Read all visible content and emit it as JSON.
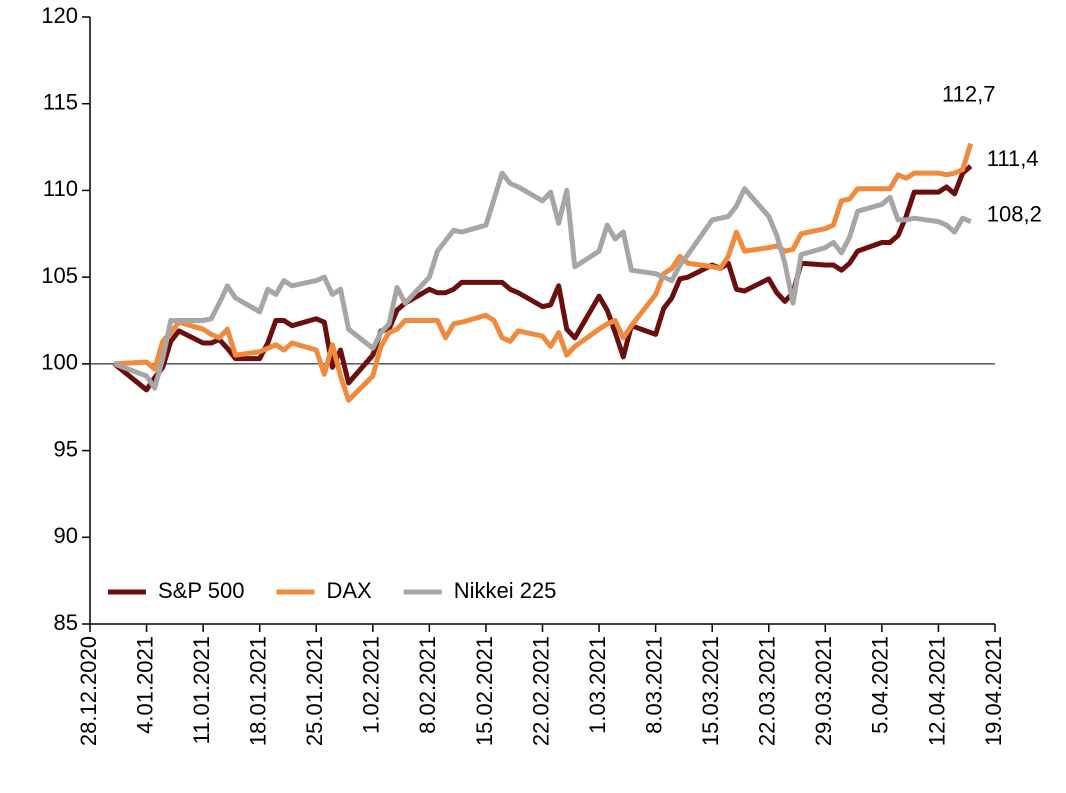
{
  "chart_data": {
    "type": "line",
    "x": [
      "2020-12-31",
      "2021-01-04",
      "2021-01-05",
      "2021-01-06",
      "2021-01-07",
      "2021-01-08",
      "2021-01-11",
      "2021-01-12",
      "2021-01-13",
      "2021-01-14",
      "2021-01-15",
      "2021-01-18",
      "2021-01-19",
      "2021-01-20",
      "2021-01-21",
      "2021-01-22",
      "2021-01-25",
      "2021-01-26",
      "2021-01-27",
      "2021-01-28",
      "2021-01-29",
      "2021-02-01",
      "2021-02-02",
      "2021-02-03",
      "2021-02-04",
      "2021-02-05",
      "2021-02-08",
      "2021-02-09",
      "2021-02-10",
      "2021-02-11",
      "2021-02-12",
      "2021-02-15",
      "2021-02-16",
      "2021-02-17",
      "2021-02-18",
      "2021-02-19",
      "2021-02-22",
      "2021-02-23",
      "2021-02-24",
      "2021-02-25",
      "2021-02-26",
      "2021-03-01",
      "2021-03-02",
      "2021-03-03",
      "2021-03-04",
      "2021-03-05",
      "2021-03-08",
      "2021-03-09",
      "2021-03-10",
      "2021-03-11",
      "2021-03-12",
      "2021-03-15",
      "2021-03-16",
      "2021-03-17",
      "2021-03-18",
      "2021-03-19",
      "2021-03-22",
      "2021-03-23",
      "2021-03-24",
      "2021-03-25",
      "2021-03-26",
      "2021-03-29",
      "2021-03-30",
      "2021-03-31",
      "2021-04-01",
      "2021-04-02",
      "2021-04-05",
      "2021-04-06",
      "2021-04-07",
      "2021-04-08",
      "2021-04-09",
      "2021-04-12",
      "2021-04-13",
      "2021-04-14",
      "2021-04-15",
      "2021-04-16"
    ],
    "series": [
      {
        "name": "S&P 500",
        "color": "#6b0e0e",
        "values": [
          100,
          98.5,
          99.2,
          99.8,
          101.3,
          101.9,
          101.2,
          101.2,
          101.4,
          100.9,
          100.3,
          100.3,
          101.2,
          102.5,
          102.5,
          102.2,
          102.6,
          102.4,
          99.8,
          100.8,
          98.9,
          100.5,
          101.9,
          102.0,
          103.1,
          103.5,
          104.3,
          104.1,
          104.1,
          104.3,
          104.7,
          104.7,
          104.7,
          104.7,
          104.3,
          104.1,
          103.3,
          103.4,
          104.5,
          102.0,
          101.5,
          103.9,
          103.1,
          101.8,
          100.4,
          102.2,
          101.7,
          103.2,
          103.8,
          104.9,
          105.0,
          105.7,
          105.5,
          105.8,
          104.3,
          104.2,
          104.9,
          104.1,
          103.6,
          104.1,
          105.8,
          105.7,
          105.7,
          105.4,
          105.8,
          106.5,
          107.0,
          107.0,
          107.4,
          108.5,
          109.9,
          109.9,
          110.2,
          109.8,
          111.0,
          111.4
        ],
        "value_labels": [
          null,
          null,
          null,
          null,
          null,
          null,
          null,
          null,
          null,
          null,
          null,
          null,
          null,
          null,
          null,
          null,
          null,
          null,
          null,
          null,
          null,
          null,
          null,
          null,
          null,
          null,
          null,
          null,
          null,
          null,
          null,
          null,
          null,
          null,
          null,
          null,
          null,
          null,
          null,
          null,
          null,
          null,
          null,
          null,
          null,
          null,
          null,
          null,
          null,
          null,
          null,
          null,
          null,
          null,
          null,
          null,
          null,
          null,
          null,
          null,
          null,
          null,
          null,
          null,
          null,
          null,
          null,
          null,
          null,
          null,
          null,
          null,
          null,
          null,
          null,
          "111,4"
        ]
      },
      {
        "name": "DAX",
        "color": "#f08a3c",
        "values": [
          100,
          100.1,
          99.7,
          101.3,
          101.8,
          102.4,
          102.0,
          101.7,
          101.5,
          102.0,
          100.5,
          100.7,
          100.9,
          101.1,
          100.8,
          101.2,
          100.8,
          99.4,
          101.1,
          99.3,
          97.9,
          99.3,
          101.0,
          101.8,
          102.0,
          102.5,
          102.5,
          102.5,
          101.5,
          102.3,
          102.4,
          102.8,
          102.5,
          101.5,
          101.3,
          101.9,
          101.6,
          101.0,
          101.8,
          100.5,
          101.0,
          102.0,
          102.3,
          102.5,
          101.5,
          102.2,
          104.0,
          105.2,
          105.5,
          106.2,
          105.8,
          105.6,
          105.5,
          106.2,
          107.6,
          106.5,
          106.7,
          106.8,
          106.5,
          106.6,
          107.5,
          107.8,
          108.0,
          109.4,
          109.5,
          110.1,
          110.1,
          110.1,
          110.9,
          110.7,
          111.0,
          111.0,
          110.9,
          111.0,
          111.2,
          112.7
        ],
        "value_labels": [
          null,
          null,
          null,
          null,
          null,
          null,
          null,
          null,
          null,
          null,
          null,
          null,
          null,
          null,
          null,
          null,
          null,
          null,
          null,
          null,
          null,
          null,
          null,
          null,
          null,
          null,
          null,
          null,
          null,
          null,
          null,
          null,
          null,
          null,
          null,
          null,
          null,
          null,
          null,
          null,
          null,
          null,
          null,
          null,
          null,
          null,
          null,
          null,
          null,
          null,
          null,
          null,
          null,
          null,
          null,
          null,
          null,
          null,
          null,
          null,
          null,
          null,
          null,
          null,
          null,
          null,
          null,
          null,
          null,
          null,
          null,
          null,
          null,
          null,
          null,
          "112,7"
        ]
      },
      {
        "name": "Nikkei 225",
        "color": "#a6a6a6",
        "values": [
          100,
          99.3,
          98.6,
          100.3,
          102.5,
          102.5,
          102.5,
          102.6,
          103.5,
          104.5,
          103.8,
          103.0,
          104.3,
          104.0,
          104.8,
          104.5,
          104.8,
          105.0,
          104.0,
          104.3,
          102.0,
          100.9,
          101.8,
          102.3,
          104.4,
          103.5,
          105.0,
          106.5,
          107.1,
          107.7,
          107.6,
          108.0,
          109.5,
          111.0,
          110.4,
          110.2,
          109.4,
          109.9,
          108.1,
          110.0,
          105.6,
          106.5,
          108.0,
          107.2,
          107.6,
          105.4,
          105.2,
          105.0,
          104.8,
          105.7,
          106.3,
          108.3,
          108.4,
          108.5,
          109.1,
          110.1,
          108.5,
          107.4,
          105.8,
          103.5,
          106.3,
          106.7,
          107.0,
          106.4,
          107.3,
          108.8,
          109.2,
          109.6,
          108.3,
          108.3,
          108.4,
          108.2,
          108.0,
          107.6,
          108.4,
          108.2
        ],
        "value_labels": [
          null,
          null,
          null,
          null,
          null,
          null,
          null,
          null,
          null,
          null,
          null,
          null,
          null,
          null,
          null,
          null,
          null,
          null,
          null,
          null,
          null,
          null,
          null,
          null,
          null,
          null,
          null,
          null,
          null,
          null,
          null,
          null,
          null,
          null,
          null,
          null,
          null,
          null,
          null,
          null,
          null,
          null,
          null,
          null,
          null,
          null,
          null,
          null,
          null,
          null,
          null,
          null,
          null,
          null,
          null,
          null,
          null,
          null,
          null,
          null,
          null,
          null,
          null,
          null,
          null,
          null,
          null,
          null,
          null,
          null,
          null,
          null,
          null,
          null,
          null,
          "108,2"
        ]
      }
    ],
    "xlim": [
      "2020-12-28",
      "2021-04-19"
    ],
    "xticks": [
      {
        "value": "2020-12-28",
        "label": "28.12.2020"
      },
      {
        "value": "2021-01-04",
        "label": "4.01.2021"
      },
      {
        "value": "2021-01-11",
        "label": "11.01.2021"
      },
      {
        "value": "2021-01-18",
        "label": "18.01.2021"
      },
      {
        "value": "2021-01-25",
        "label": "25.01.2021"
      },
      {
        "value": "2021-02-01",
        "label": "1.02.2021"
      },
      {
        "value": "2021-02-08",
        "label": "8.02.2021"
      },
      {
        "value": "2021-02-15",
        "label": "15.02.2021"
      },
      {
        "value": "2021-02-22",
        "label": "22.02.2021"
      },
      {
        "value": "2021-03-01",
        "label": "1.03.2021"
      },
      {
        "value": "2021-03-08",
        "label": "8.03.2021"
      },
      {
        "value": "2021-03-15",
        "label": "15.03.2021"
      },
      {
        "value": "2021-03-22",
        "label": "22.03.2021"
      },
      {
        "value": "2021-03-29",
        "label": "29.03.2021"
      },
      {
        "value": "2021-04-05",
        "label": "5.04.2021"
      },
      {
        "value": "2021-04-12",
        "label": "12.04.2021"
      },
      {
        "value": "2021-04-19",
        "label": "19.04.2021"
      }
    ],
    "ylim": [
      85,
      120
    ],
    "yticks": [
      85,
      90,
      95,
      100,
      105,
      110,
      115,
      120
    ],
    "reference_line": 100,
    "legend": "lower left"
  }
}
